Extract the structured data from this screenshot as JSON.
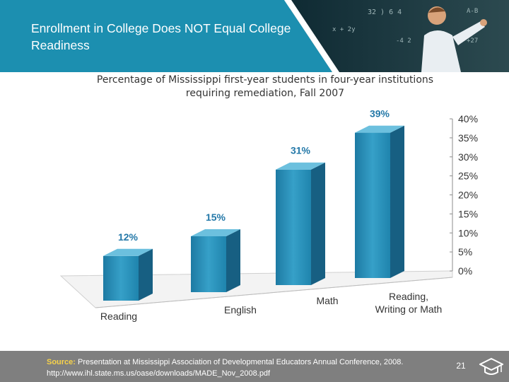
{
  "slide": {
    "title": "Enrollment in College Does NOT Equal College Readiness",
    "subtitle_line1": "Percentage of Mississippi first-year students in four-year institutions",
    "subtitle_line2": "requiring remediation, Fall 2007",
    "page_number": "21"
  },
  "footer": {
    "source_label": "Source:",
    "source_line1": " Presentation at Mississippi Association of Developmental Educators Annual Conference, 2008.",
    "source_line2": "http://www.ihl.state.ms.us/oase/downloads/MADE_Nov_2008.pdf"
  },
  "colors": {
    "header_teal": "#1c8fb0",
    "bar_front": "#2b8fb8",
    "value_label": "#2378a8",
    "footer_gray": "#7f7f7f",
    "source_label": "#f7d24a"
  },
  "icons": [
    "teacher-photo",
    "graduation-cap-icon"
  ],
  "chart_data": {
    "type": "bar",
    "three_d": true,
    "categories": [
      "Reading",
      "English",
      "Math",
      "Reading, Writing or Math"
    ],
    "values": [
      12,
      15,
      31,
      39
    ],
    "value_labels": [
      "12%",
      "15%",
      "31%",
      "39%"
    ],
    "title": "Percentage of Mississippi first-year students in four-year institutions requiring remediation, Fall 2007",
    "xlabel": "",
    "ylabel": "",
    "ylim": [
      0,
      40
    ],
    "yticks": [
      "0%",
      "5%",
      "10%",
      "15%",
      "20%",
      "25%",
      "30%",
      "35%",
      "40%"
    ],
    "y_axis_side": "right",
    "grid": false,
    "legend": "none"
  }
}
